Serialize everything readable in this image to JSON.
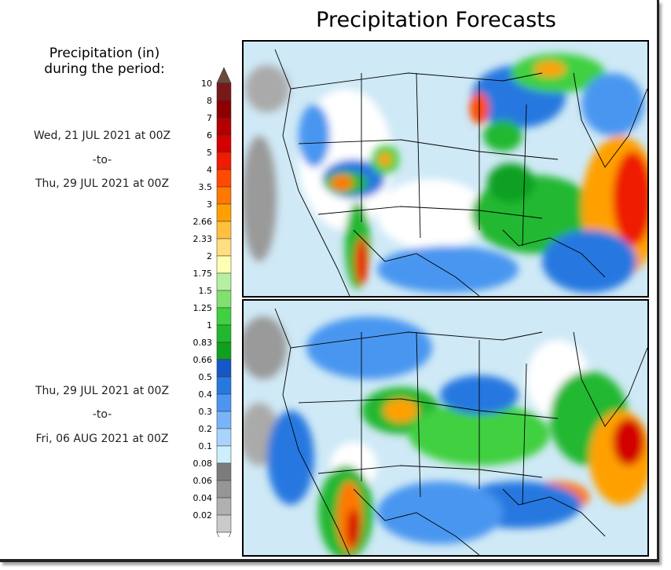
{
  "title": "Precipitation Forecasts",
  "legend": {
    "title_line1": "Precipitation (in)",
    "title_line2": "during the period:",
    "bins": [
      {
        "label": "10",
        "color": "#7a1818"
      },
      {
        "label": "8",
        "color": "#8e0000"
      },
      {
        "label": "7",
        "color": "#b20000"
      },
      {
        "label": "6",
        "color": "#d40000"
      },
      {
        "label": "5",
        "color": "#ee1c00"
      },
      {
        "label": "4",
        "color": "#ff4a00"
      },
      {
        "label": "3.5",
        "color": "#ff7800"
      },
      {
        "label": "3",
        "color": "#ffa000"
      },
      {
        "label": "2.66",
        "color": "#ffc040"
      },
      {
        "label": "2.33",
        "color": "#ffdd80"
      },
      {
        "label": "2",
        "color": "#ffffb4"
      },
      {
        "label": "1.75",
        "color": "#b4f0a0"
      },
      {
        "label": "1.5",
        "color": "#80e070"
      },
      {
        "label": "1.25",
        "color": "#40d040"
      },
      {
        "label": "1",
        "color": "#20b830"
      },
      {
        "label": "0.83",
        "color": "#10a020"
      },
      {
        "label": "0.66",
        "color": "#1458c8"
      },
      {
        "label": "0.5",
        "color": "#2878e0"
      },
      {
        "label": "0.4",
        "color": "#4a96f0"
      },
      {
        "label": "0.3",
        "color": "#78b4f8"
      },
      {
        "label": "0.2",
        "color": "#a8d4fc"
      },
      {
        "label": "0.1",
        "color": "#cceefe"
      },
      {
        "label": "0.08",
        "color": "#7c7c7c"
      },
      {
        "label": "0.06",
        "color": "#969696"
      },
      {
        "label": "0.04",
        "color": "#b0b0b0"
      },
      {
        "label": "0.02",
        "color": "#cacaca"
      }
    ],
    "top_cap_color": "#6a4a3a",
    "bottom_cap_color": "#ffffff"
  },
  "panels": [
    {
      "start": "Wed, 21 JUL 2021 at 00Z",
      "sep": "-to-",
      "end": "Thu, 29 JUL 2021 at 00Z"
    },
    {
      "start": "Thu, 29 JUL 2021 at 00Z",
      "sep": "-to-",
      "end": "Fri, 06 AUG 2021 at 00Z"
    }
  ]
}
